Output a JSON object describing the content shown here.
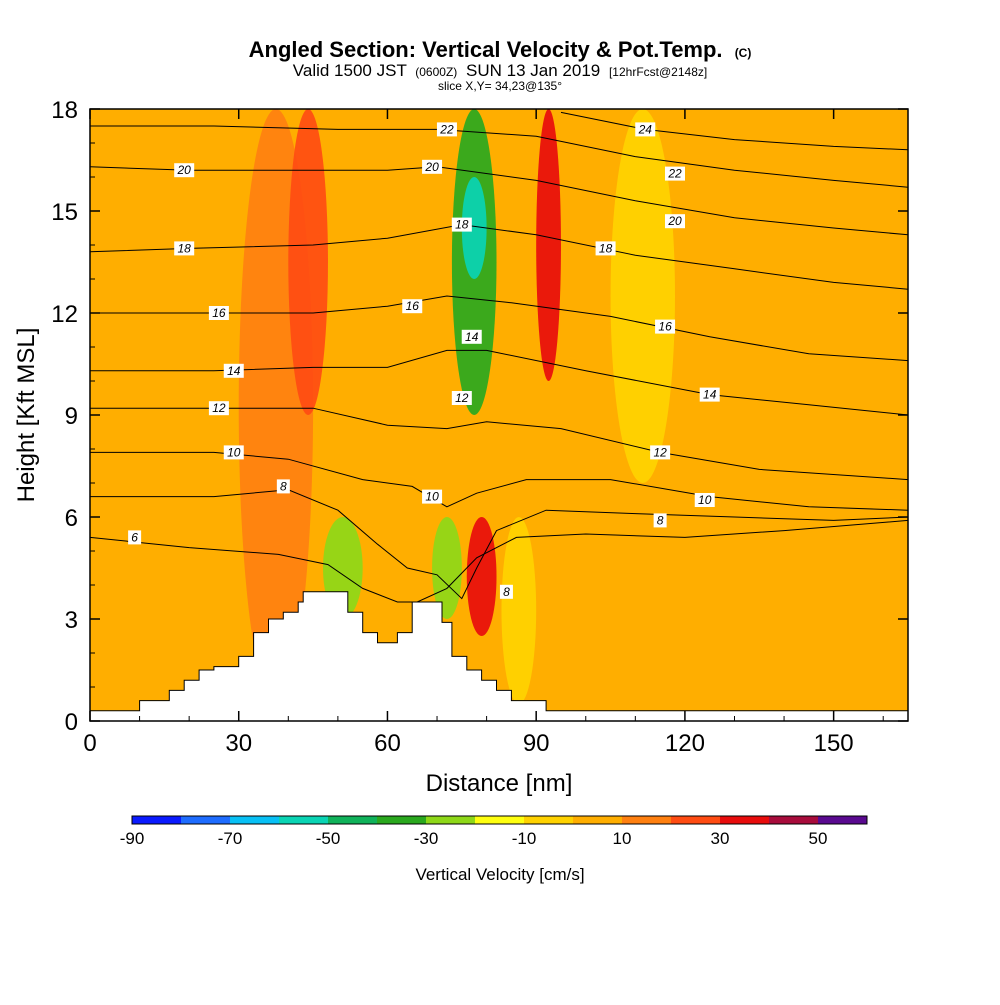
{
  "chart_data": {
    "type": "heatmap",
    "title": "Angled Section: Vertical Velocity & Pot.Temp.",
    "title_unit": "(C)",
    "subtitle_valid": "Valid 1500 JST",
    "subtitle_utc": "(0600Z)",
    "subtitle_date": "SUN 13 Jan 2019",
    "subtitle_fcst": "[12hrFcst@2148z]",
    "slice_text": "slice X,Y= 34,23@135°",
    "xlabel": "Distance [nm]",
    "ylabel": "Height [Kft MSL]",
    "xlim": [
      0,
      165
    ],
    "ylim": [
      0,
      18
    ],
    "x_ticks": [
      0,
      30,
      60,
      90,
      120,
      150
    ],
    "y_ticks": [
      0,
      3,
      6,
      9,
      12,
      15,
      18
    ],
    "colorbar": {
      "label": "Vertical Velocity [cm/s]",
      "levels": [
        -90,
        -80,
        -70,
        -60,
        -50,
        -40,
        -30,
        -20,
        -10,
        0,
        10,
        20,
        30,
        40,
        50,
        60
      ],
      "tick_values": [
        -90,
        -70,
        -50,
        -30,
        -10,
        10,
        30,
        50
      ],
      "colors": [
        "#0a1aff",
        "#1e6cff",
        "#08c0f5",
        "#0ad4b4",
        "#10b25a",
        "#2aa81e",
        "#8ed818",
        "#ffff10",
        "#ffd200",
        "#ffae00",
        "#ff8010",
        "#ff4c12",
        "#e80c0c",
        "#a80c3c",
        "#5a0a90"
      ]
    },
    "terrain": [
      [
        0,
        0.3
      ],
      [
        10,
        0.3
      ],
      [
        10,
        0.6
      ],
      [
        16,
        0.6
      ],
      [
        16,
        0.9
      ],
      [
        19,
        0.9
      ],
      [
        19,
        1.2
      ],
      [
        22,
        1.2
      ],
      [
        22,
        1.5
      ],
      [
        25,
        1.5
      ],
      [
        25,
        1.6
      ],
      [
        30,
        1.6
      ],
      [
        30,
        1.9
      ],
      [
        33,
        1.9
      ],
      [
        33,
        2.6
      ],
      [
        36,
        2.6
      ],
      [
        36,
        3.0
      ],
      [
        39,
        3.0
      ],
      [
        39,
        3.2
      ],
      [
        42,
        3.2
      ],
      [
        42,
        3.5
      ],
      [
        43,
        3.5
      ],
      [
        43,
        3.8
      ],
      [
        52,
        3.8
      ],
      [
        52,
        3.2
      ],
      [
        55,
        3.2
      ],
      [
        55,
        2.6
      ],
      [
        58,
        2.6
      ],
      [
        58,
        2.3
      ],
      [
        62,
        2.3
      ],
      [
        62,
        2.6
      ],
      [
        65,
        2.6
      ],
      [
        65,
        3.5
      ],
      [
        71,
        3.5
      ],
      [
        71,
        2.9
      ],
      [
        73,
        2.9
      ],
      [
        73,
        1.9
      ],
      [
        76,
        1.9
      ],
      [
        76,
        1.5
      ],
      [
        79,
        1.5
      ],
      [
        79,
        1.2
      ],
      [
        82,
        1.2
      ],
      [
        82,
        0.9
      ],
      [
        85,
        0.9
      ],
      [
        85,
        0.6
      ],
      [
        92,
        0.6
      ],
      [
        92,
        0.3
      ],
      [
        165,
        0.3
      ]
    ],
    "velocity_field": [
      {
        "note_x": [
          0,
          165
        ],
        "base_value": 5
      },
      {
        "x": [
          30,
          45
        ],
        "y": [
          0.5,
          18
        ],
        "value": 15
      },
      {
        "x": [
          40,
          48
        ],
        "y": [
          9,
          18
        ],
        "value": 25
      },
      {
        "x": [
          47,
          55
        ],
        "y": [
          3,
          6
        ],
        "value": -30
      },
      {
        "x": [
          69,
          75
        ],
        "y": [
          3,
          6
        ],
        "value": -30
      },
      {
        "x": [
          73,
          82
        ],
        "y": [
          9,
          18
        ],
        "value": -40
      },
      {
        "x": [
          75,
          80
        ],
        "y": [
          13,
          16
        ],
        "value": -55
      },
      {
        "x": [
          76,
          82
        ],
        "y": [
          2.5,
          6
        ],
        "value": 30
      },
      {
        "x": [
          90,
          95
        ],
        "y": [
          10,
          18
        ],
        "value": 30
      },
      {
        "x": [
          83,
          90
        ],
        "y": [
          0.5,
          6
        ],
        "value": -10
      },
      {
        "x": [
          105,
          118
        ],
        "y": [
          7,
          18
        ],
        "value": -10
      }
    ],
    "contour_labels": [
      {
        "text": "6",
        "x": 9,
        "y": 5.4
      },
      {
        "text": "8",
        "x": 39,
        "y": 6.9
      },
      {
        "text": "10",
        "x": 29,
        "y": 7.9
      },
      {
        "text": "12",
        "x": 26,
        "y": 9.2
      },
      {
        "text": "14",
        "x": 29,
        "y": 10.3
      },
      {
        "text": "16",
        "x": 26,
        "y": 12.0
      },
      {
        "text": "18",
        "x": 19,
        "y": 13.9
      },
      {
        "text": "20",
        "x": 19,
        "y": 16.2
      },
      {
        "text": "8",
        "x": 84,
        "y": 3.8
      },
      {
        "text": "10",
        "x": 69,
        "y": 6.6
      },
      {
        "text": "12",
        "x": 75,
        "y": 9.5
      },
      {
        "text": "14",
        "x": 77,
        "y": 11.3
      },
      {
        "text": "16",
        "x": 65,
        "y": 12.2
      },
      {
        "text": "18",
        "x": 75,
        "y": 14.6
      },
      {
        "text": "20",
        "x": 69,
        "y": 16.3
      },
      {
        "text": "22",
        "x": 72,
        "y": 17.4
      },
      {
        "text": "8",
        "x": 115,
        "y": 5.9
      },
      {
        "text": "10",
        "x": 124,
        "y": 6.5
      },
      {
        "text": "12",
        "x": 115,
        "y": 7.9
      },
      {
        "text": "14",
        "x": 125,
        "y": 9.6
      },
      {
        "text": "16",
        "x": 116,
        "y": 11.6
      },
      {
        "text": "18",
        "x": 104,
        "y": 13.9
      },
      {
        "text": "20",
        "x": 118,
        "y": 14.7
      },
      {
        "text": "22",
        "x": 118,
        "y": 16.1
      },
      {
        "text": "24",
        "x": 112,
        "y": 17.4
      }
    ],
    "isentropes": [
      {
        "value": 6,
        "points": [
          [
            0,
            5.4
          ],
          [
            20,
            5.1
          ],
          [
            38,
            4.9
          ],
          [
            48,
            4.6
          ],
          [
            55,
            3.9
          ],
          [
            62,
            3.5
          ],
          [
            66,
            3.5
          ],
          [
            72,
            3.9
          ],
          [
            78,
            4.8
          ],
          [
            86,
            5.4
          ],
          [
            100,
            5.5
          ],
          [
            120,
            5.4
          ],
          [
            140,
            5.6
          ],
          [
            165,
            5.9
          ]
        ]
      },
      {
        "value": 8,
        "points": [
          [
            0,
            6.6
          ],
          [
            25,
            6.6
          ],
          [
            40,
            6.8
          ],
          [
            50,
            6.2
          ],
          [
            58,
            5.2
          ],
          [
            64,
            4.5
          ],
          [
            70,
            4.3
          ],
          [
            75,
            3.6
          ],
          [
            78,
            4.5
          ],
          [
            82,
            5.6
          ],
          [
            92,
            6.2
          ],
          [
            110,
            6.1
          ],
          [
            130,
            6.0
          ],
          [
            150,
            5.9
          ],
          [
            165,
            6.0
          ]
        ]
      },
      {
        "value": 10,
        "points": [
          [
            0,
            7.9
          ],
          [
            25,
            7.9
          ],
          [
            40,
            7.7
          ],
          [
            55,
            7.1
          ],
          [
            65,
            6.9
          ],
          [
            72,
            6.3
          ],
          [
            78,
            6.7
          ],
          [
            88,
            7.1
          ],
          [
            105,
            7.1
          ],
          [
            125,
            6.6
          ],
          [
            145,
            6.3
          ],
          [
            165,
            6.2
          ]
        ]
      },
      {
        "value": 12,
        "points": [
          [
            0,
            9.2
          ],
          [
            25,
            9.2
          ],
          [
            45,
            9.2
          ],
          [
            60,
            8.7
          ],
          [
            72,
            8.6
          ],
          [
            80,
            8.8
          ],
          [
            95,
            8.6
          ],
          [
            115,
            7.9
          ],
          [
            135,
            7.4
          ],
          [
            165,
            7.1
          ]
        ]
      },
      {
        "value": 14,
        "points": [
          [
            0,
            10.3
          ],
          [
            25,
            10.3
          ],
          [
            45,
            10.4
          ],
          [
            60,
            10.4
          ],
          [
            72,
            10.9
          ],
          [
            80,
            10.9
          ],
          [
            100,
            10.3
          ],
          [
            125,
            9.6
          ],
          [
            145,
            9.3
          ],
          [
            165,
            9.0
          ]
        ]
      },
      {
        "value": 16,
        "points": [
          [
            0,
            12.0
          ],
          [
            25,
            12.0
          ],
          [
            45,
            12.0
          ],
          [
            60,
            12.2
          ],
          [
            72,
            12.5
          ],
          [
            85,
            12.3
          ],
          [
            105,
            11.9
          ],
          [
            125,
            11.3
          ],
          [
            145,
            10.8
          ],
          [
            165,
            10.6
          ]
        ]
      },
      {
        "value": 18,
        "points": [
          [
            0,
            13.8
          ],
          [
            20,
            13.9
          ],
          [
            45,
            14.0
          ],
          [
            60,
            14.2
          ],
          [
            75,
            14.6
          ],
          [
            90,
            14.3
          ],
          [
            110,
            13.7
          ],
          [
            130,
            13.3
          ],
          [
            150,
            12.9
          ],
          [
            165,
            12.7
          ]
        ]
      },
      {
        "value": 20,
        "points": [
          [
            0,
            16.3
          ],
          [
            20,
            16.2
          ],
          [
            45,
            16.2
          ],
          [
            60,
            16.2
          ],
          [
            70,
            16.3
          ],
          [
            90,
            15.9
          ],
          [
            110,
            15.3
          ],
          [
            130,
            14.8
          ],
          [
            150,
            14.5
          ],
          [
            165,
            14.3
          ]
        ]
      },
      {
        "value": 22,
        "points": [
          [
            0,
            17.5
          ],
          [
            25,
            17.5
          ],
          [
            50,
            17.4
          ],
          [
            70,
            17.4
          ],
          [
            90,
            17.2
          ],
          [
            110,
            16.6
          ],
          [
            130,
            16.2
          ],
          [
            150,
            15.9
          ],
          [
            165,
            15.7
          ]
        ]
      },
      {
        "value": 24,
        "points": [
          [
            95,
            17.9
          ],
          [
            112,
            17.4
          ],
          [
            130,
            17.1
          ],
          [
            150,
            16.9
          ],
          [
            165,
            16.8
          ]
        ]
      }
    ]
  }
}
